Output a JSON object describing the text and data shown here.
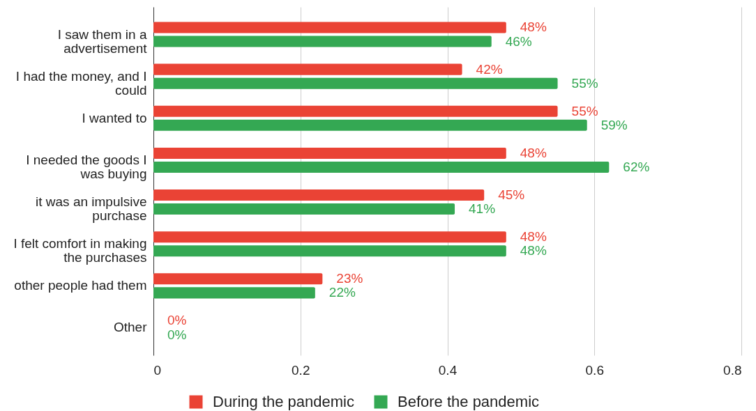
{
  "chart_data": {
    "type": "bar",
    "orientation": "horizontal",
    "categories": [
      "I saw them in a advertisement",
      "I had the money, and I could",
      "I wanted to",
      "I needed the goods I was buying",
      "it was an impulsive purchase",
      "I felt comfort in making the purchases",
      "other people had them",
      "Other"
    ],
    "series": [
      {
        "name": "During the pandemic",
        "color": "#ea4335",
        "values": [
          0.48,
          0.42,
          0.55,
          0.48,
          0.45,
          0.48,
          0.23,
          0
        ],
        "value_labels": [
          "48%",
          "42%",
          "55%",
          "48%",
          "45%",
          "48%",
          "23%",
          "0%"
        ]
      },
      {
        "name": "Before the pandemic",
        "color": "#34a853",
        "values": [
          0.46,
          0.55,
          0.59,
          0.62,
          0.41,
          0.48,
          0.22,
          0
        ],
        "value_labels": [
          "46%",
          "55%",
          "59%",
          "62%",
          "41%",
          "48%",
          "22%",
          "0%"
        ]
      }
    ],
    "xlim": [
      0,
      0.8
    ],
    "xticks": [
      0,
      0.2,
      0.4,
      0.6,
      0.8
    ],
    "grid": "x",
    "legend": "bottom"
  }
}
